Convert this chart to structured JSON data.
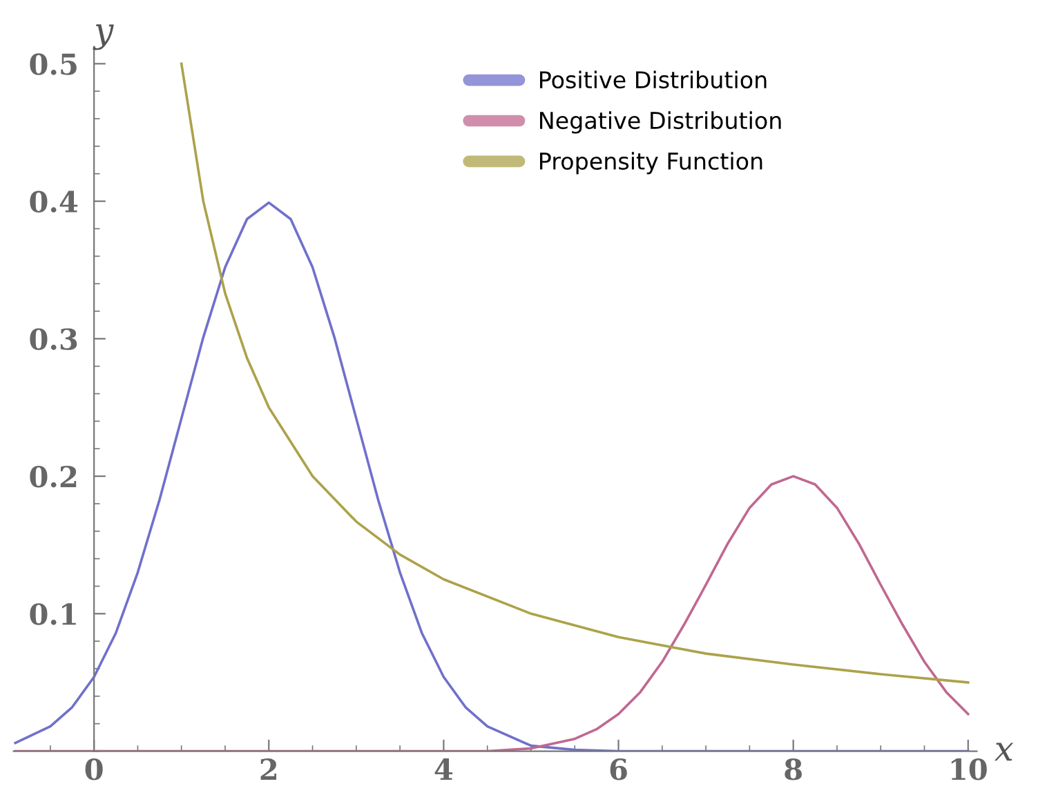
{
  "chart_data": {
    "type": "line",
    "xlabel": "x",
    "ylabel": "y",
    "xlim": [
      -0.92,
      10.1
    ],
    "ylim": [
      0,
      0.51
    ],
    "xticks": [
      0,
      2,
      4,
      6,
      8,
      10
    ],
    "yticks": [
      0.1,
      0.2,
      0.3,
      0.4,
      0.5
    ],
    "grid": false,
    "legend": "top right",
    "marker": "none",
    "line_style": "solid",
    "series": [
      {
        "name": "Positive Distribution",
        "color": "#7070cc",
        "x": [
          -0.9,
          -0.5,
          -0.25,
          0,
          0.25,
          0.5,
          0.75,
          1,
          1.25,
          1.5,
          1.75,
          2,
          2.25,
          2.5,
          2.75,
          3,
          3.25,
          3.5,
          3.75,
          4,
          4.25,
          4.5,
          5,
          5.5,
          6,
          10
        ],
        "values": [
          0.006,
          0.018,
          0.032,
          0.054,
          0.086,
          0.13,
          0.183,
          0.242,
          0.301,
          0.352,
          0.387,
          0.399,
          0.387,
          0.352,
          0.301,
          0.242,
          0.183,
          0.13,
          0.086,
          0.054,
          0.032,
          0.018,
          0.004,
          0.001,
          0,
          0
        ]
      },
      {
        "name": "Negative Distribution",
        "color": "#c06890",
        "x": [
          -0.9,
          4,
          4.5,
          5,
          5.5,
          5.75,
          6,
          6.25,
          6.5,
          6.75,
          7,
          7.25,
          7.5,
          7.75,
          8,
          8.25,
          8.5,
          8.75,
          9,
          9.25,
          9.5,
          9.75,
          10
        ],
        "values": [
          0,
          0,
          0,
          0.002,
          0.009,
          0.016,
          0.027,
          0.043,
          0.065,
          0.092,
          0.121,
          0.151,
          0.177,
          0.194,
          0.2,
          0.194,
          0.177,
          0.151,
          0.121,
          0.092,
          0.065,
          0.043,
          0.027
        ]
      },
      {
        "name": "Propensity Function",
        "color": "#aca24a",
        "x": [
          1,
          1.25,
          1.5,
          1.75,
          2,
          2.5,
          3,
          3.5,
          4,
          5,
          6,
          7,
          8,
          9,
          10
        ],
        "values": [
          0.5,
          0.4,
          0.333,
          0.286,
          0.25,
          0.2,
          0.167,
          0.143,
          0.125,
          0.1,
          0.083,
          0.071,
          0.063,
          0.056,
          0.05
        ]
      }
    ]
  }
}
